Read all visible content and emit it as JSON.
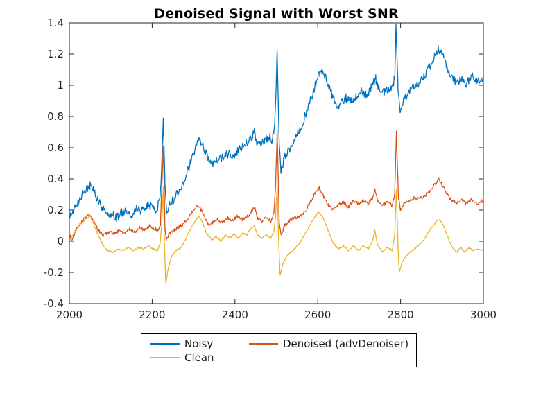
{
  "chart_data": {
    "type": "line",
    "title": "Denoised Signal with Worst SNR",
    "xlabel": "",
    "ylabel": "",
    "xlim": [
      2000,
      3000
    ],
    "ylim": [
      -0.4,
      1.4
    ],
    "xticks": [
      2000,
      2200,
      2400,
      2600,
      2800,
      3000
    ],
    "yticks": [
      -0.4,
      -0.2,
      0,
      0.2,
      0.4,
      0.6,
      0.8,
      1,
      1.2,
      1.4
    ],
    "grid": false,
    "legend_position": "south-outside",
    "series": [
      {
        "name": "Noisy",
        "color": "#0072BD",
        "noise_amplitude": 0.028,
        "keypoints": [
          [
            2000,
            0.15
          ],
          [
            2008,
            0.2
          ],
          [
            2018,
            0.24
          ],
          [
            2030,
            0.3
          ],
          [
            2042,
            0.34
          ],
          [
            2050,
            0.36
          ],
          [
            2058,
            0.33
          ],
          [
            2068,
            0.27
          ],
          [
            2080,
            0.21
          ],
          [
            2092,
            0.18
          ],
          [
            2105,
            0.17
          ],
          [
            2115,
            0.15
          ],
          [
            2125,
            0.18
          ],
          [
            2138,
            0.2
          ],
          [
            2150,
            0.17
          ],
          [
            2162,
            0.21
          ],
          [
            2175,
            0.19
          ],
          [
            2188,
            0.23
          ],
          [
            2198,
            0.22
          ],
          [
            2208,
            0.2
          ],
          [
            2216,
            0.24
          ],
          [
            2221,
            0.33
          ],
          [
            2227,
            0.78
          ],
          [
            2231,
            0.35
          ],
          [
            2235,
            0.17
          ],
          [
            2242,
            0.24
          ],
          [
            2252,
            0.27
          ],
          [
            2265,
            0.32
          ],
          [
            2278,
            0.4
          ],
          [
            2292,
            0.5
          ],
          [
            2304,
            0.6
          ],
          [
            2313,
            0.67
          ],
          [
            2322,
            0.62
          ],
          [
            2332,
            0.55
          ],
          [
            2345,
            0.5
          ],
          [
            2358,
            0.52
          ],
          [
            2370,
            0.54
          ],
          [
            2382,
            0.56
          ],
          [
            2395,
            0.55
          ],
          [
            2408,
            0.58
          ],
          [
            2420,
            0.61
          ],
          [
            2432,
            0.63
          ],
          [
            2440,
            0.66
          ],
          [
            2447,
            0.7
          ],
          [
            2453,
            0.64
          ],
          [
            2462,
            0.62
          ],
          [
            2472,
            0.64
          ],
          [
            2482,
            0.67
          ],
          [
            2490,
            0.65
          ],
          [
            2496,
            0.75
          ],
          [
            2502,
            1.21
          ],
          [
            2507,
            0.6
          ],
          [
            2511,
            0.45
          ],
          [
            2520,
            0.54
          ],
          [
            2532,
            0.59
          ],
          [
            2545,
            0.66
          ],
          [
            2558,
            0.73
          ],
          [
            2570,
            0.81
          ],
          [
            2582,
            0.9
          ],
          [
            2594,
            1.0
          ],
          [
            2605,
            1.08
          ],
          [
            2612,
            1.1
          ],
          [
            2622,
            1.03
          ],
          [
            2634,
            0.94
          ],
          [
            2645,
            0.86
          ],
          [
            2656,
            0.88
          ],
          [
            2668,
            0.92
          ],
          [
            2680,
            0.9
          ],
          [
            2692,
            0.93
          ],
          [
            2705,
            0.96
          ],
          [
            2718,
            0.94
          ],
          [
            2728,
            0.98
          ],
          [
            2740,
            1.04
          ],
          [
            2748,
            0.98
          ],
          [
            2760,
            0.96
          ],
          [
            2772,
            0.98
          ],
          [
            2782,
            1.0
          ],
          [
            2786,
            1.05
          ],
          [
            2789,
            1.38
          ],
          [
            2794,
            0.95
          ],
          [
            2799,
            0.81
          ],
          [
            2808,
            0.92
          ],
          [
            2820,
            0.95
          ],
          [
            2832,
            0.99
          ],
          [
            2845,
            1.01
          ],
          [
            2858,
            1.06
          ],
          [
            2870,
            1.12
          ],
          [
            2882,
            1.19
          ],
          [
            2892,
            1.24
          ],
          [
            2900,
            1.2
          ],
          [
            2912,
            1.12
          ],
          [
            2924,
            1.05
          ],
          [
            2936,
            1.02
          ],
          [
            2948,
            1.05
          ],
          [
            2960,
            1.01
          ],
          [
            2972,
            1.06
          ],
          [
            2984,
            1.02
          ],
          [
            2994,
            1.05
          ],
          [
            3000,
            1.03
          ]
        ]
      },
      {
        "name": "Denoised (advDenoiser)",
        "color": "#D95319",
        "noise_amplitude": 0.011,
        "keypoints": [
          [
            2000,
            0.04
          ],
          [
            2006,
            0.01
          ],
          [
            2014,
            0.06
          ],
          [
            2025,
            0.11
          ],
          [
            2038,
            0.15
          ],
          [
            2048,
            0.17
          ],
          [
            2058,
            0.13
          ],
          [
            2070,
            0.07
          ],
          [
            2082,
            0.04
          ],
          [
            2095,
            0.06
          ],
          [
            2108,
            0.05
          ],
          [
            2120,
            0.07
          ],
          [
            2132,
            0.05
          ],
          [
            2145,
            0.08
          ],
          [
            2158,
            0.06
          ],
          [
            2170,
            0.09
          ],
          [
            2182,
            0.07
          ],
          [
            2194,
            0.1
          ],
          [
            2204,
            0.08
          ],
          [
            2214,
            0.07
          ],
          [
            2220,
            0.11
          ],
          [
            2227,
            0.62
          ],
          [
            2231,
            0.08
          ],
          [
            2234,
            0.01
          ],
          [
            2242,
            0.05
          ],
          [
            2252,
            0.07
          ],
          [
            2264,
            0.09
          ],
          [
            2276,
            0.11
          ],
          [
            2290,
            0.16
          ],
          [
            2302,
            0.21
          ],
          [
            2311,
            0.23
          ],
          [
            2322,
            0.18
          ],
          [
            2334,
            0.11
          ],
          [
            2346,
            0.12
          ],
          [
            2358,
            0.14
          ],
          [
            2370,
            0.12
          ],
          [
            2382,
            0.15
          ],
          [
            2394,
            0.13
          ],
          [
            2406,
            0.16
          ],
          [
            2418,
            0.14
          ],
          [
            2430,
            0.16
          ],
          [
            2440,
            0.19
          ],
          [
            2447,
            0.22
          ],
          [
            2454,
            0.15
          ],
          [
            2464,
            0.13
          ],
          [
            2476,
            0.15
          ],
          [
            2486,
            0.13
          ],
          [
            2494,
            0.17
          ],
          [
            2498,
            0.35
          ],
          [
            2502,
            0.7
          ],
          [
            2507,
            0.12
          ],
          [
            2511,
            0.04
          ],
          [
            2520,
            0.1
          ],
          [
            2532,
            0.13
          ],
          [
            2544,
            0.15
          ],
          [
            2556,
            0.16
          ],
          [
            2570,
            0.19
          ],
          [
            2584,
            0.26
          ],
          [
            2598,
            0.33
          ],
          [
            2604,
            0.34
          ],
          [
            2614,
            0.29
          ],
          [
            2626,
            0.23
          ],
          [
            2638,
            0.2
          ],
          [
            2650,
            0.23
          ],
          [
            2662,
            0.25
          ],
          [
            2674,
            0.22
          ],
          [
            2686,
            0.26
          ],
          [
            2698,
            0.24
          ],
          [
            2710,
            0.26
          ],
          [
            2722,
            0.24
          ],
          [
            2732,
            0.28
          ],
          [
            2738,
            0.33
          ],
          [
            2744,
            0.26
          ],
          [
            2756,
            0.23
          ],
          [
            2768,
            0.25
          ],
          [
            2780,
            0.23
          ],
          [
            2786,
            0.3
          ],
          [
            2790,
            0.7
          ],
          [
            2795,
            0.28
          ],
          [
            2800,
            0.2
          ],
          [
            2808,
            0.24
          ],
          [
            2820,
            0.26
          ],
          [
            2832,
            0.28
          ],
          [
            2845,
            0.27
          ],
          [
            2858,
            0.29
          ],
          [
            2870,
            0.32
          ],
          [
            2882,
            0.36
          ],
          [
            2892,
            0.4
          ],
          [
            2900,
            0.36
          ],
          [
            2912,
            0.3
          ],
          [
            2924,
            0.26
          ],
          [
            2936,
            0.25
          ],
          [
            2948,
            0.27
          ],
          [
            2960,
            0.24
          ],
          [
            2972,
            0.27
          ],
          [
            2984,
            0.24
          ],
          [
            2994,
            0.26
          ],
          [
            3000,
            0.25
          ]
        ]
      },
      {
        "name": "Clean",
        "color": "#EDB120",
        "noise_amplitude": 0.004,
        "keypoints": [
          [
            2000,
            0.0
          ],
          [
            2008,
            0.04
          ],
          [
            2018,
            0.08
          ],
          [
            2030,
            0.12
          ],
          [
            2042,
            0.15
          ],
          [
            2050,
            0.16
          ],
          [
            2058,
            0.12
          ],
          [
            2068,
            0.05
          ],
          [
            2080,
            -0.02
          ],
          [
            2092,
            -0.06
          ],
          [
            2105,
            -0.07
          ],
          [
            2118,
            -0.05
          ],
          [
            2130,
            -0.06
          ],
          [
            2142,
            -0.04
          ],
          [
            2155,
            -0.06
          ],
          [
            2168,
            -0.04
          ],
          [
            2180,
            -0.05
          ],
          [
            2192,
            -0.03
          ],
          [
            2202,
            -0.05
          ],
          [
            2212,
            -0.06
          ],
          [
            2219,
            -0.02
          ],
          [
            2223,
            0.1
          ],
          [
            2227,
            0.35
          ],
          [
            2230,
            -0.05
          ],
          [
            2233,
            -0.27
          ],
          [
            2239,
            -0.17
          ],
          [
            2248,
            -0.09
          ],
          [
            2258,
            -0.06
          ],
          [
            2270,
            -0.04
          ],
          [
            2282,
            0.02
          ],
          [
            2295,
            0.09
          ],
          [
            2306,
            0.14
          ],
          [
            2313,
            0.16
          ],
          [
            2322,
            0.12
          ],
          [
            2332,
            0.05
          ],
          [
            2344,
            0.01
          ],
          [
            2355,
            0.03
          ],
          [
            2366,
            0.0
          ],
          [
            2377,
            0.04
          ],
          [
            2388,
            0.02
          ],
          [
            2398,
            0.05
          ],
          [
            2408,
            0.02
          ],
          [
            2418,
            0.05
          ],
          [
            2428,
            0.04
          ],
          [
            2438,
            0.08
          ],
          [
            2447,
            0.1
          ],
          [
            2454,
            0.04
          ],
          [
            2464,
            0.02
          ],
          [
            2476,
            0.04
          ],
          [
            2486,
            0.02
          ],
          [
            2494,
            0.06
          ],
          [
            2498,
            0.16
          ],
          [
            2502,
            0.35
          ],
          [
            2506,
            -0.04
          ],
          [
            2509,
            -0.22
          ],
          [
            2516,
            -0.14
          ],
          [
            2526,
            -0.09
          ],
          [
            2540,
            -0.06
          ],
          [
            2554,
            -0.02
          ],
          [
            2568,
            0.04
          ],
          [
            2582,
            0.11
          ],
          [
            2596,
            0.17
          ],
          [
            2603,
            0.19
          ],
          [
            2613,
            0.15
          ],
          [
            2625,
            0.07
          ],
          [
            2637,
            -0.01
          ],
          [
            2650,
            -0.05
          ],
          [
            2662,
            -0.03
          ],
          [
            2674,
            -0.06
          ],
          [
            2686,
            -0.03
          ],
          [
            2698,
            -0.06
          ],
          [
            2710,
            -0.03
          ],
          [
            2722,
            -0.05
          ],
          [
            2732,
            0.0
          ],
          [
            2738,
            0.07
          ],
          [
            2744,
            -0.02
          ],
          [
            2756,
            -0.07
          ],
          [
            2768,
            -0.04
          ],
          [
            2780,
            -0.06
          ],
          [
            2786,
            0.05
          ],
          [
            2790,
            0.33
          ],
          [
            2794,
            -0.05
          ],
          [
            2797,
            -0.2
          ],
          [
            2804,
            -0.13
          ],
          [
            2815,
            -0.09
          ],
          [
            2828,
            -0.06
          ],
          [
            2842,
            -0.03
          ],
          [
            2856,
            0.01
          ],
          [
            2870,
            0.07
          ],
          [
            2884,
            0.12
          ],
          [
            2894,
            0.14
          ],
          [
            2904,
            0.1
          ],
          [
            2915,
            0.02
          ],
          [
            2925,
            -0.04
          ],
          [
            2935,
            -0.07
          ],
          [
            2945,
            -0.04
          ],
          [
            2955,
            -0.07
          ],
          [
            2965,
            -0.04
          ],
          [
            2975,
            -0.06
          ],
          [
            2985,
            -0.05
          ],
          [
            2994,
            -0.06
          ],
          [
            3000,
            -0.05
          ]
        ]
      }
    ]
  },
  "axes": {
    "color": "#262626"
  },
  "legend": {
    "items": [
      {
        "label": "Noisy"
      },
      {
        "label": "Denoised (advDenoiser)"
      },
      {
        "label": "Clean"
      }
    ]
  }
}
